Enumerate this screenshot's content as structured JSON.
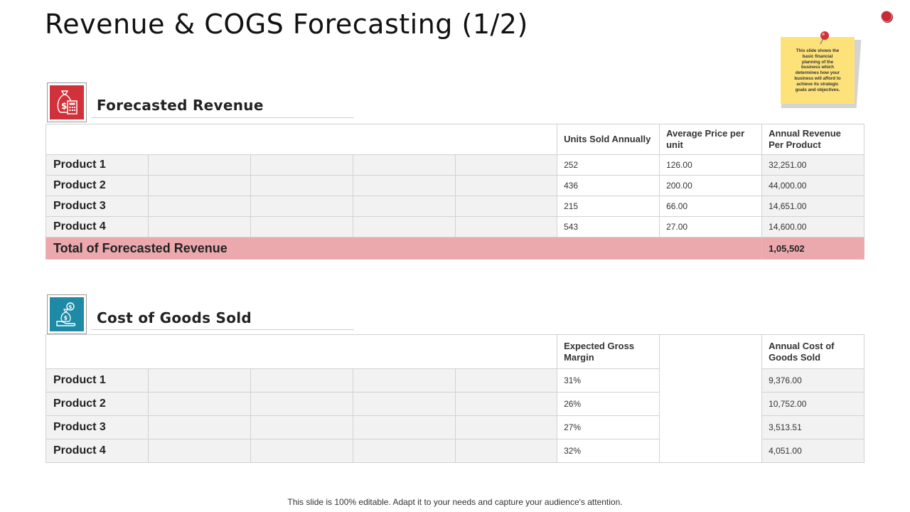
{
  "title": "Revenue & COGS Forecasting (1/2)",
  "note": {
    "lines": [
      "This slide shows the",
      "basic financial",
      "planning of the",
      "business which",
      "determines how your",
      "business will afford to",
      "achieve its strategic",
      "goals and objectives."
    ]
  },
  "revenue": {
    "title": "Forecasted  Revenue",
    "icon": "money-bag-calculator-icon",
    "headers": [
      "Units  Sold Annually",
      "Average Price per unit",
      "Annual Revenue Per Product"
    ],
    "rows": [
      {
        "product": "Product 1",
        "units": "252",
        "price": "126.00",
        "revenue": "32,251.00"
      },
      {
        "product": "Product 2",
        "units": "436",
        "price": "200.00",
        "revenue": "44,000.00"
      },
      {
        "product": "Product 3",
        "units": "215",
        "price": "66.00",
        "revenue": "14,651.00"
      },
      {
        "product": "Product 4",
        "units": "543",
        "price": "27.00",
        "revenue": "14,600.00"
      }
    ],
    "total_label": "Total of Forecasted Revenue",
    "total_value": "1,05,502"
  },
  "cogs": {
    "title": "Cost of Goods Sold",
    "icon": "money-bag-hand-icon",
    "headers": [
      "Expected Gross Margin",
      "Annual Cost of Goods  Sold"
    ],
    "rows": [
      {
        "product": "Product 1",
        "margin": "31%",
        "cost": "9,376.00"
      },
      {
        "product": "Product 2",
        "margin": "26%",
        "cost": "10,752.00"
      },
      {
        "product": "Product 3",
        "margin": "27%",
        "cost": "3,513.51"
      },
      {
        "product": "Product 4",
        "margin": "32%",
        "cost": "4,051.00"
      }
    ]
  },
  "colors": {
    "revenue_accent": "#d0313a",
    "cogs_accent": "#1e8aa6",
    "total_row": "#eba9ae"
  },
  "footer": "This slide is 100% editable. Adapt it to your needs and capture your audience's attention."
}
